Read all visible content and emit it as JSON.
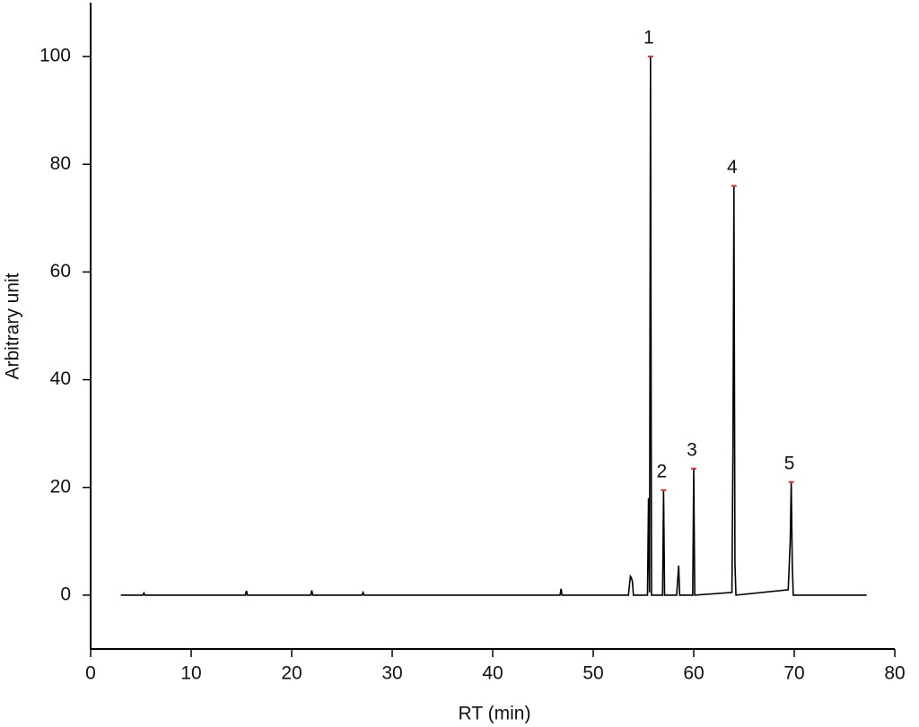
{
  "chart_data": {
    "type": "line",
    "xlabel": "RT (min)",
    "ylabel": "Arbitrary unit",
    "xlim": [
      0,
      80
    ],
    "ylim": [
      -10,
      110
    ],
    "xticks": [
      0,
      10,
      20,
      30,
      40,
      50,
      60,
      70,
      80
    ],
    "yticks": [
      0,
      20,
      40,
      60,
      80,
      100
    ],
    "color": "#000000",
    "marker_color": "#e03030",
    "x": [
      3,
      5.2,
      5.3,
      5.4,
      15.4,
      15.5,
      15.6,
      21.9,
      22,
      22.1,
      27,
      27.1,
      27.2,
      46.7,
      46.8,
      46.9,
      53.5,
      53.7,
      53.8,
      53.9,
      54.0,
      55.4,
      55.5,
      55.6,
      55.7,
      55.8,
      56.9,
      57,
      57.1,
      58.3,
      58.5,
      58.6,
      59.9,
      60,
      60.1,
      63.8,
      63.9,
      64,
      64.1,
      64.2,
      69.4,
      69.6,
      69.7,
      69.8,
      69.9,
      77.2
    ],
    "values": [
      0,
      0,
      0.4,
      0,
      0,
      0.8,
      0,
      0,
      0.9,
      0,
      0,
      0.5,
      0,
      0,
      1.2,
      0,
      0,
      3.5,
      3.2,
      2.5,
      0,
      0,
      18,
      0.5,
      100,
      0,
      0,
      19.5,
      0,
      0,
      5.5,
      0,
      0,
      23.5,
      0,
      0.5,
      27,
      76,
      6,
      0,
      1,
      10,
      21,
      6,
      0,
      0
    ],
    "peaks": [
      {
        "label": "1",
        "x": 55.7,
        "y": 100
      },
      {
        "label": "2",
        "x": 57,
        "y": 19.5
      },
      {
        "label": "3",
        "x": 60,
        "y": 23.5
      },
      {
        "label": "4",
        "x": 64,
        "y": 76
      },
      {
        "label": "5",
        "x": 69.7,
        "y": 21
      }
    ]
  }
}
